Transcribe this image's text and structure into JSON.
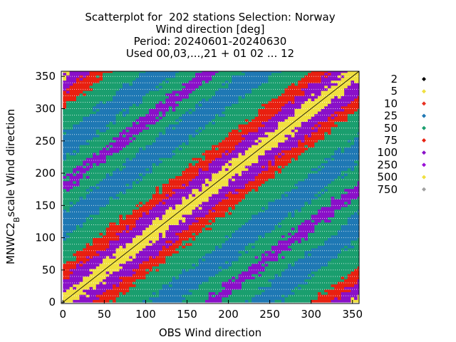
{
  "title_lines": [
    "Scatterplot for  202 stations Selection: Norway",
    "Wind direction [deg]",
    "Period: 20240601-20240630",
    "Used 00,03,...,21 + 01 02 ... 12"
  ],
  "chart_data": {
    "type": "heatmap",
    "title": "Scatterplot for  202 stations Selection: Norway",
    "subtitle": "Wind direction [deg]",
    "xlabel": "OBS Wind direction",
    "ylabel": "MNWC2",
    "ylabel_subscript": "B",
    "ylabel_rest": "scale Wind direction",
    "xlim": [
      -2,
      358
    ],
    "ylim": [
      -2,
      358
    ],
    "x_ticks": [
      0,
      50,
      100,
      150,
      200,
      250,
      300,
      350
    ],
    "y_ticks": [
      0,
      50,
      100,
      150,
      200,
      250,
      300,
      350
    ],
    "grid": true,
    "diagonal_line": true,
    "legend_position": "right",
    "legend": [
      {
        "label": "2",
        "color": "#000000"
      },
      {
        "label": "5",
        "color": "#f0e040"
      },
      {
        "label": "10",
        "color": "#e83020"
      },
      {
        "label": "25",
        "color": "#1f78b4"
      },
      {
        "label": "50",
        "color": "#1a9e6e"
      },
      {
        "label": "75",
        "color": "#e82010"
      },
      {
        "label": "100",
        "color": "#8a10c8"
      },
      {
        "label": "250",
        "color": "#9a10d8"
      },
      {
        "label": "500",
        "color": "#f0e040"
      },
      {
        "label": "750",
        "color": "#a0a0a0"
      }
    ],
    "density_bands": [
      {
        "offset_deg": 0,
        "level": "500"
      },
      {
        "offset_deg": 14,
        "level": "100"
      },
      {
        "offset_deg": 36,
        "level": "75"
      },
      {
        "offset_deg": 58,
        "level": "50"
      },
      {
        "offset_deg": 100,
        "level": "25"
      },
      {
        "offset_deg": 140,
        "level": "50"
      },
      {
        "offset_deg": 170,
        "level": "100"
      }
    ]
  }
}
